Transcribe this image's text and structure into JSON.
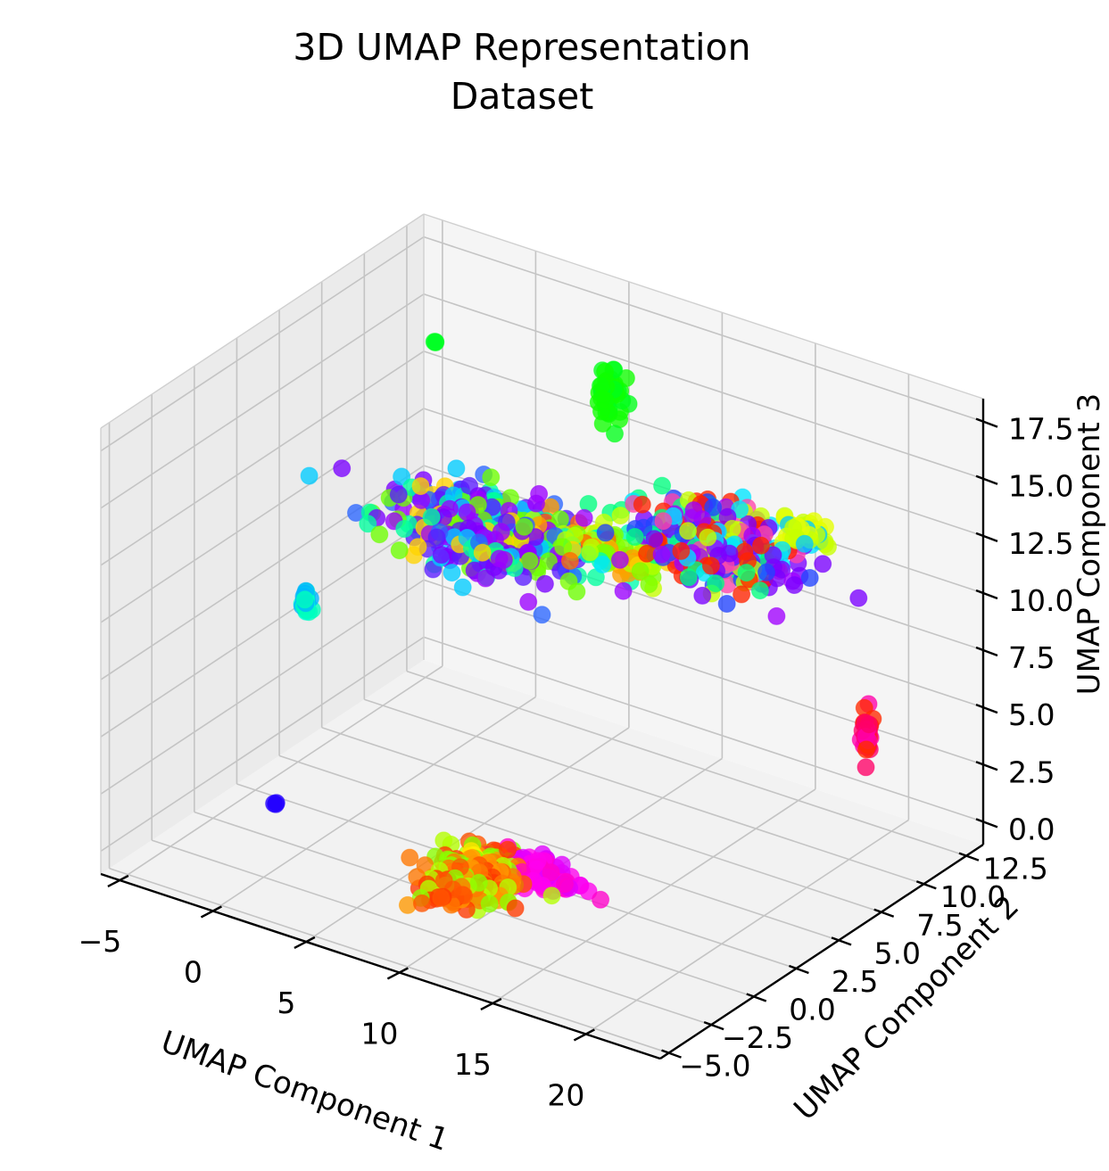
{
  "chart_data": {
    "type": "scatter",
    "projection": "3d",
    "title": [
      "3D UMAP Representation",
      "Dataset"
    ],
    "xlabel": "UMAP Component 1",
    "ylabel": "UMAP Component 2",
    "zlabel": "UMAP Component 3",
    "x_ticks": [
      "−5",
      "0",
      "5",
      "10",
      "15",
      "20"
    ],
    "y_ticks": [
      "−5.0",
      "−2.5",
      "0.0",
      "2.5",
      "5.0",
      "7.5",
      "10.0",
      "12.5"
    ],
    "z_ticks": [
      "0.0",
      "2.5",
      "5.0",
      "7.5",
      "10.0",
      "12.5",
      "15.0",
      "17.5"
    ],
    "x_range": [
      -6,
      24
    ],
    "y_range": [
      -5.5,
      13.5
    ],
    "z_range": [
      -1,
      18.5
    ],
    "grid": true,
    "colormap": "hsv",
    "clusters": [
      {
        "label": "isolated green point",
        "x": -3.6,
        "y": 11.5,
        "z": 14.5,
        "n": 3,
        "spread": [
          0.1,
          0.1,
          0.1
        ],
        "colors": [
          "#00ff22"
        ]
      },
      {
        "label": "green cluster",
        "x": 5.5,
        "y": 12.0,
        "z": 14.4,
        "n": 40,
        "spread": [
          0.3,
          0.3,
          0.6
        ],
        "colors": [
          "#00ff1a",
          "#10ff00"
        ]
      },
      {
        "label": "main cluster left",
        "x": 3.5,
        "y": 6.5,
        "z": 10.6,
        "n": 420,
        "spread": [
          2.4,
          0.8,
          0.6
        ],
        "colors": [
          "#7a00ff",
          "#5a1cff",
          "#9b00ff",
          "#2b66ff",
          "#00ccff",
          "#00ff9d",
          "#6dff00",
          "#ffd400"
        ]
      },
      {
        "label": "main cluster bridge",
        "x": 9.6,
        "y": 6.8,
        "z": 11.3,
        "n": 100,
        "spread": [
          1.6,
          0.5,
          0.35
        ],
        "colors": [
          "#ff9f00",
          "#b5ff00",
          "#ff6a00",
          "#7cff00",
          "#ffd000",
          "#00ffb0"
        ]
      },
      {
        "label": "main cluster right",
        "x": 15.4,
        "y": 7.3,
        "z": 12.8,
        "n": 360,
        "spread": [
          2.1,
          0.8,
          0.7
        ],
        "colors": [
          "#7a00ff",
          "#a000ff",
          "#2244ff",
          "#00e5ff",
          "#00ff7f",
          "#c6ff00",
          "#ff44aa",
          "#ff2200"
        ]
      },
      {
        "label": "main cluster tail",
        "x": 19.8,
        "y": 7.6,
        "z": 14.4,
        "n": 30,
        "spread": [
          0.6,
          0.3,
          0.3
        ],
        "colors": [
          "#c8ff00",
          "#e5ff00",
          "#00ccff"
        ]
      },
      {
        "label": "cyan cluster",
        "x": -2.2,
        "y": 2.4,
        "z": 8.0,
        "n": 30,
        "spread": [
          0.1,
          0.1,
          0.3
        ],
        "colors": [
          "#00ffd5",
          "#00ffbb",
          "#00b5ff"
        ]
      },
      {
        "label": "blue point",
        "x": 0.5,
        "y": -2.4,
        "z": 2.3,
        "n": 3,
        "spread": [
          0.05,
          0.05,
          0.05
        ],
        "colors": [
          "#2200ff"
        ]
      },
      {
        "label": "orange cluster",
        "x": 11.8,
        "y": -3.0,
        "z": 2.4,
        "n": 360,
        "spread": [
          0.9,
          0.9,
          0.35
        ],
        "colors": [
          "#ff5500",
          "#ff3a00",
          "#ff7700",
          "#8bff00",
          "#b3ff00",
          "#ff9900"
        ]
      },
      {
        "label": "magenta cluster",
        "x": 14.0,
        "y": -1.5,
        "z": 2.4,
        "n": 90,
        "spread": [
          1.0,
          0.3,
          0.3
        ],
        "colors": [
          "#ff00ee",
          "#e000ff",
          "#ff00cc"
        ]
      },
      {
        "label": "yellow points",
        "x": 11.0,
        "y": -2.3,
        "z": 2.8,
        "n": 10,
        "spread": [
          0.1,
          0.1,
          0.1
        ],
        "colors": [
          "#ffe600",
          "#fff200"
        ]
      },
      {
        "label": "pink-red cluster",
        "x": 18.4,
        "y": 12.8,
        "z": 2.7,
        "n": 40,
        "spread": [
          0.1,
          0.1,
          0.5
        ],
        "colors": [
          "#ff00aa",
          "#ff0066",
          "#ff2a00"
        ]
      }
    ]
  }
}
